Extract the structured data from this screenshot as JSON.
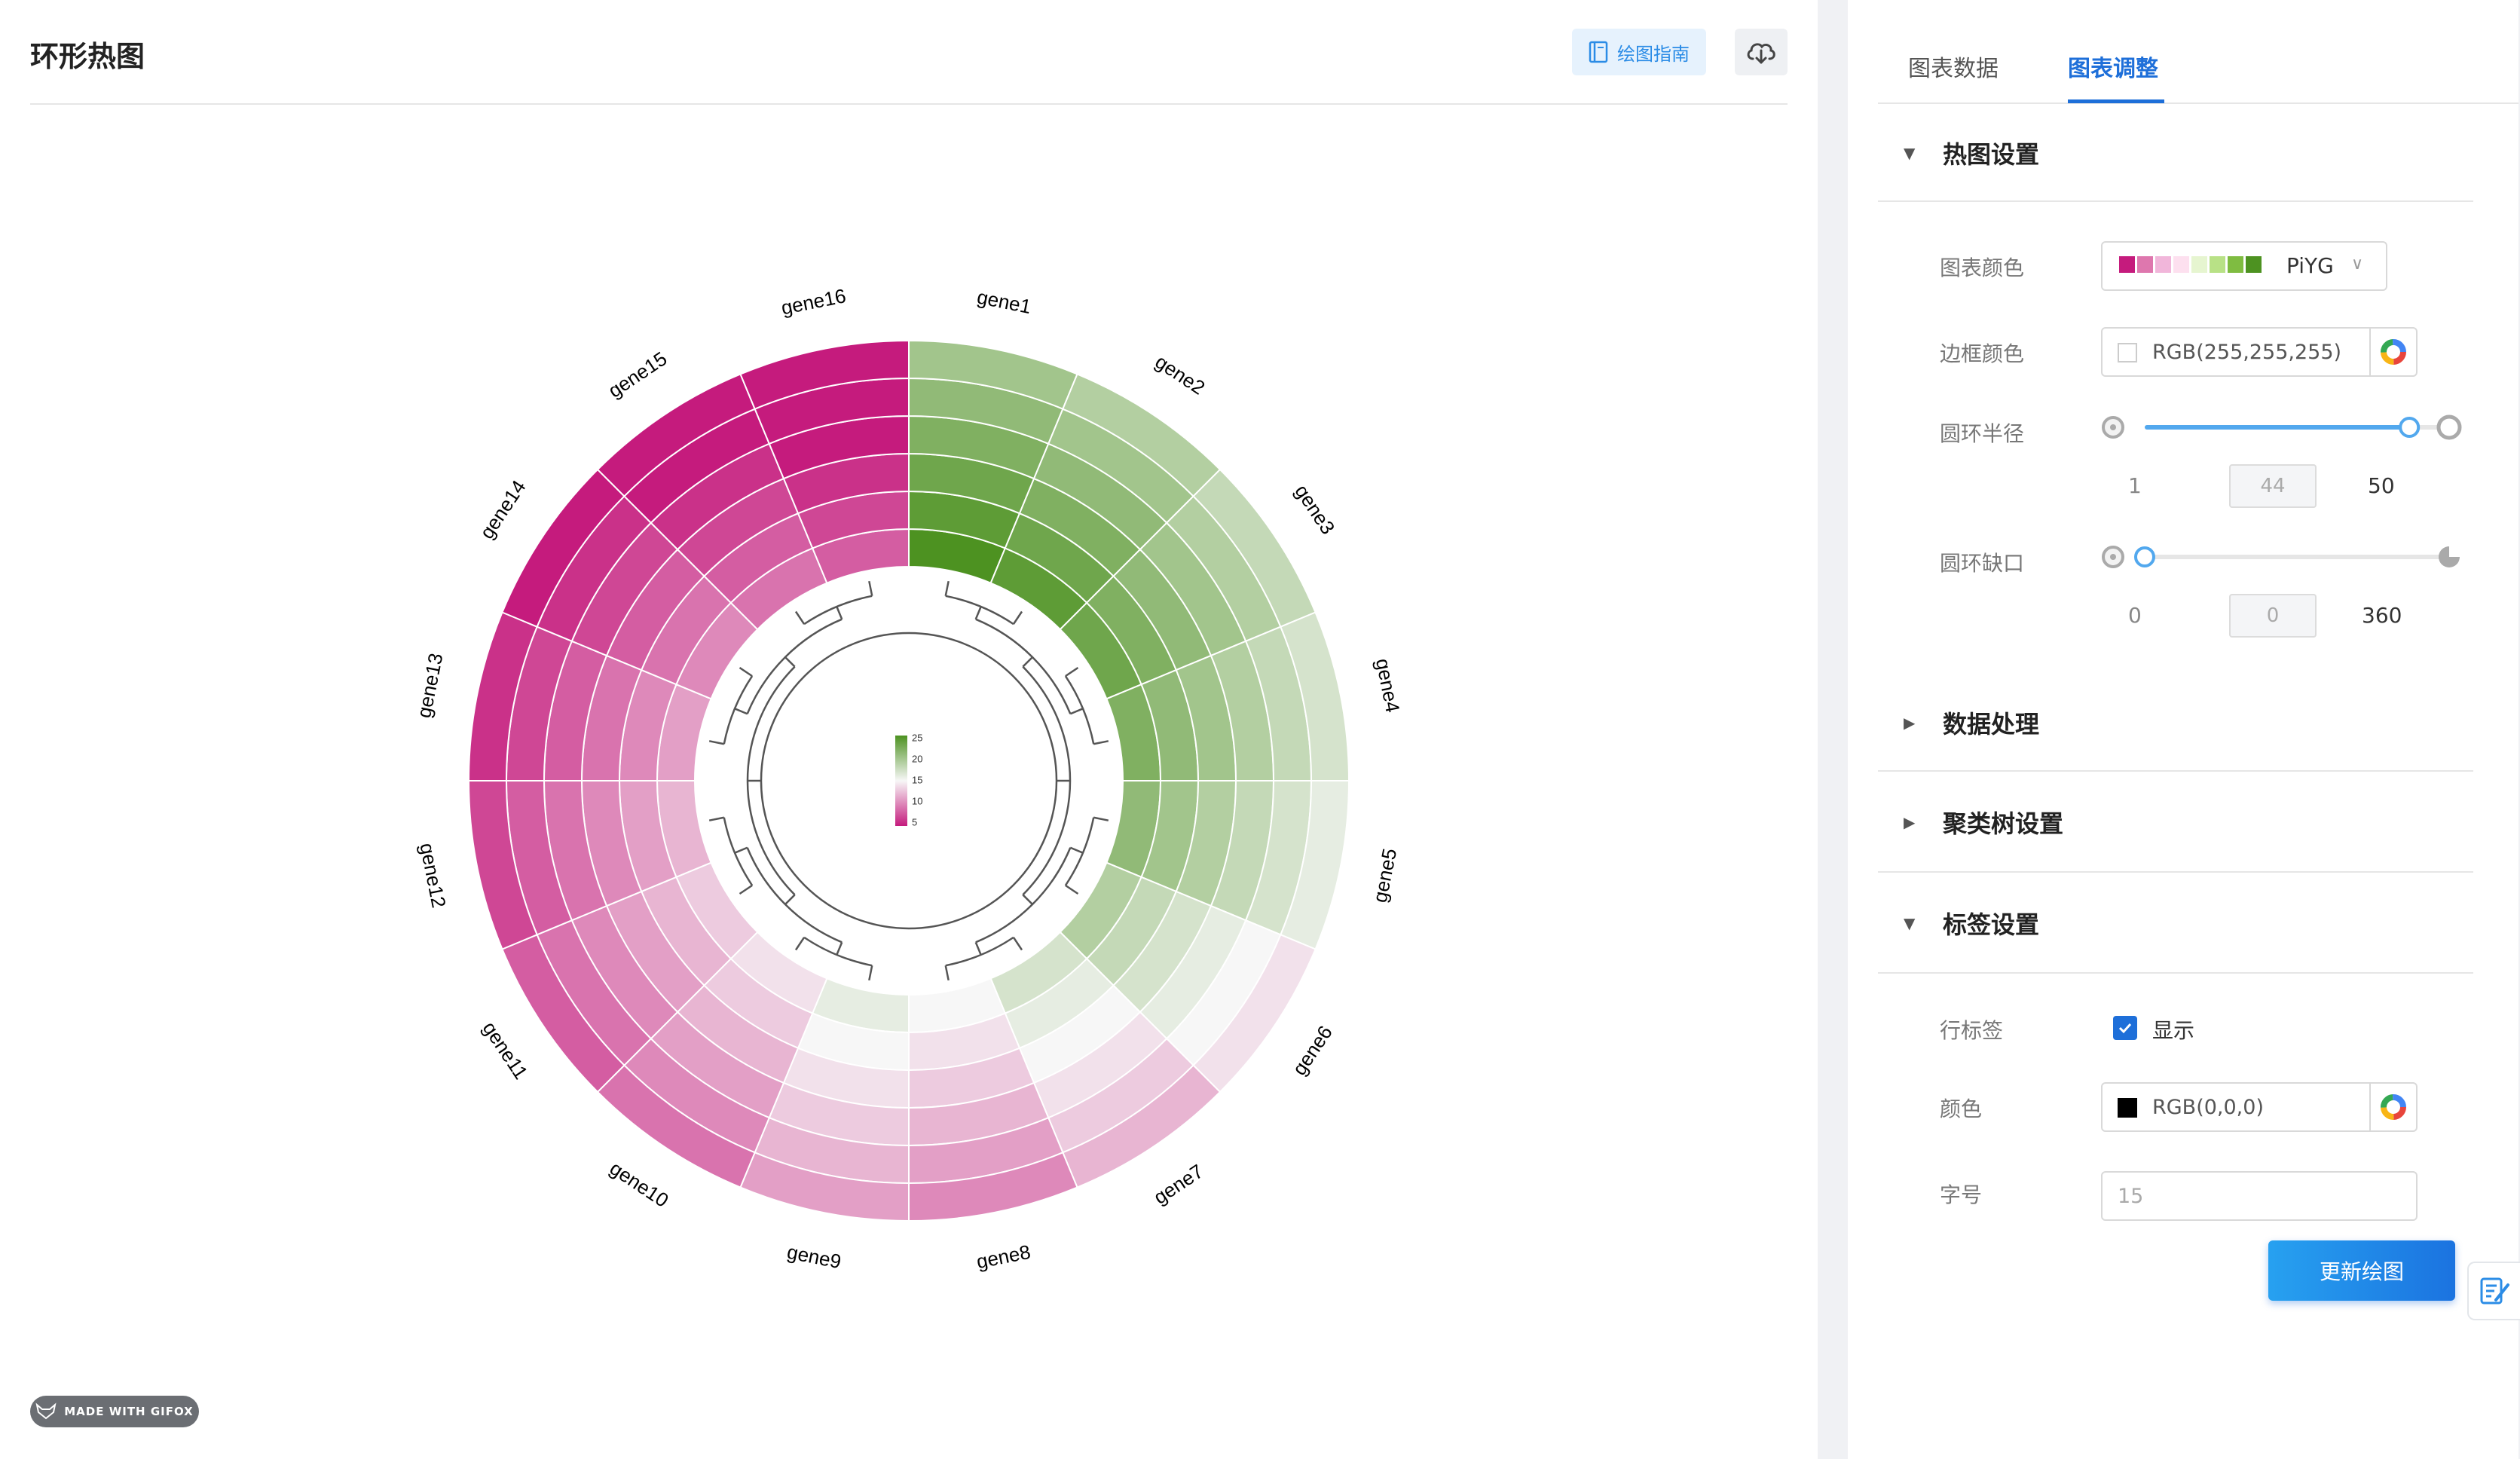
{
  "page": {
    "title": "环形热图",
    "guide_label": "绘图指南",
    "download_icon": "cloud-download-icon",
    "watermark": "MADE WITH GIFOX"
  },
  "chart_data": {
    "type": "heatmap",
    "layout": "circular",
    "genes": [
      "gene1",
      "gene2",
      "gene3",
      "gene4",
      "gene5",
      "gene6",
      "gene7",
      "gene8",
      "gene9",
      "gene10",
      "gene11",
      "gene12",
      "gene13",
      "gene14",
      "gene15",
      "gene16"
    ],
    "rings": 6,
    "values": [
      [
        25,
        24,
        23,
        22,
        21,
        20
      ],
      [
        24,
        23,
        22,
        21,
        20,
        19
      ],
      [
        23,
        22,
        21,
        20,
        19,
        18
      ],
      [
        22,
        21,
        20,
        19,
        18,
        17
      ],
      [
        21,
        20,
        19,
        18,
        17,
        16
      ],
      [
        19,
        18,
        17,
        16,
        15,
        14
      ],
      [
        17,
        16,
        15,
        14,
        13,
        12
      ],
      [
        15,
        14,
        13,
        12,
        11,
        10
      ],
      [
        16,
        15,
        14,
        13,
        12,
        11
      ],
      [
        14,
        13,
        12,
        11,
        10,
        9
      ],
      [
        13,
        12,
        11,
        10,
        9,
        8
      ],
      [
        12,
        11,
        10,
        9,
        8,
        7
      ],
      [
        11,
        10,
        9,
        8,
        7,
        6
      ],
      [
        10,
        9,
        8,
        7,
        6,
        5
      ],
      [
        9,
        8,
        7,
        6,
        5,
        5
      ],
      [
        8,
        7,
        6,
        5,
        5,
        5
      ]
    ],
    "color_scale": "PiYG",
    "color_range": [
      5,
      25
    ],
    "legend_ticks": [
      "25",
      "20",
      "15",
      "10",
      "5"
    ],
    "gap_degrees": 0,
    "radius": 44,
    "border_color": "#ffffff",
    "colors": {
      "low": "#c51b7d",
      "mid": "#f7f7f7",
      "high": "#4d9221"
    }
  },
  "panel": {
    "tabs": [
      {
        "label": "图表数据",
        "active": false
      },
      {
        "label": "图表调整",
        "active": true
      }
    ],
    "sections": {
      "heatmap": "热图设置",
      "data": "数据处理",
      "tree": "聚类树设置",
      "labels": "标签设置"
    },
    "heatmap": {
      "color_label": "图表颜色",
      "color_value": "PiYG",
      "palette": [
        "#c51b7d",
        "#de77ae",
        "#f1b6da",
        "#fde0ef",
        "#e6f5d0",
        "#b8e186",
        "#7fbc41",
        "#4d9221"
      ],
      "border_label": "边框颜色",
      "border_value": "RGB(255,255,255)",
      "radius_label": "圆环半径",
      "radius_min": "1",
      "radius_value": "44",
      "radius_max": "50",
      "radius_fraction": 0.878,
      "gap_label": "圆环缺口",
      "gap_min": "0",
      "gap_value": "0",
      "gap_max": "360",
      "gap_fraction": 0
    },
    "labels": {
      "row_label": "行标签",
      "show_label": "显示",
      "color_label": "颜色",
      "color_value": "RGB(0,0,0)",
      "size_label": "字号",
      "size_value": "15"
    },
    "update_button": "更新绘图"
  }
}
